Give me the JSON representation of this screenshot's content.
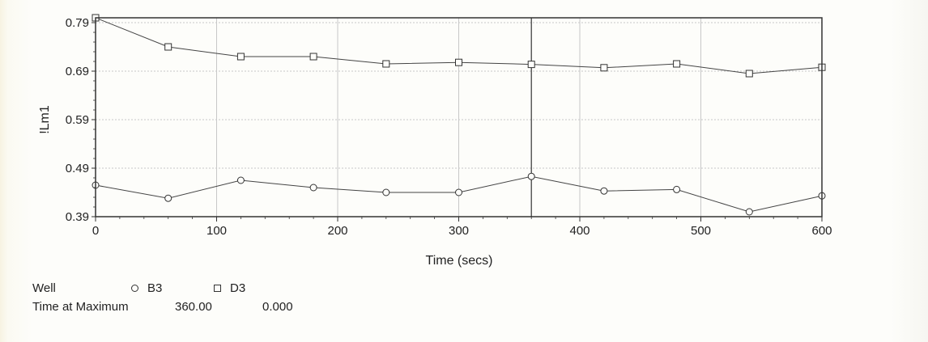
{
  "chart_data": {
    "type": "line",
    "title": "",
    "xlabel": "Time (secs)",
    "ylabel": "!Lm1",
    "xlim": [
      0,
      600
    ],
    "ylim": [
      0.39,
      0.8
    ],
    "x_ticks": [
      "0",
      "100",
      "200",
      "300",
      "400",
      "500",
      "600"
    ],
    "y_ticks": [
      "0.39",
      "0.49",
      "0.59",
      "0.69",
      "0.79"
    ],
    "grid": true,
    "marker_line_x": 360,
    "x": [
      0,
      60,
      120,
      180,
      240,
      300,
      360,
      420,
      480,
      540,
      600
    ],
    "series": [
      {
        "name": "B3",
        "marker": "circle",
        "values": [
          0.455,
          0.428,
          0.465,
          0.45,
          0.44,
          0.44,
          0.473,
          0.443,
          0.446,
          0.4,
          0.433
        ]
      },
      {
        "name": "D3",
        "marker": "square",
        "values": [
          0.8,
          0.74,
          0.72,
          0.72,
          0.705,
          0.708,
          0.704,
          0.697,
          0.705,
          0.685,
          0.698
        ]
      }
    ]
  },
  "legend": {
    "well_label": "Well",
    "time_at_max_label": "Time at Maximum",
    "values": [
      "360.00",
      "0.000"
    ]
  },
  "colors": {
    "line": "#444444",
    "grid": "#c8c8c8",
    "frame": "#333333"
  }
}
